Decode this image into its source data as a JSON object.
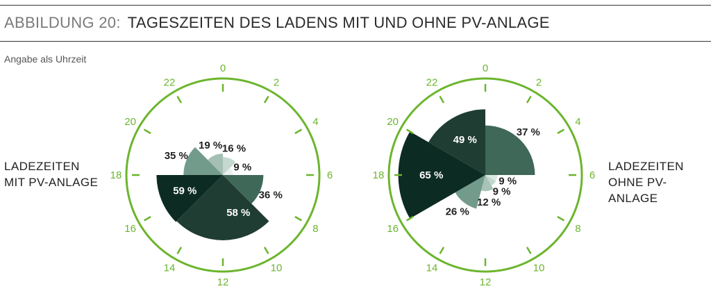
{
  "header": {
    "figure_label": "ABBILDUNG 20:",
    "title": "TAGESZEITEN DES LADENS MIT UND OHNE PV-ANLAGE",
    "subtitle": "Angabe als Uhrzeit"
  },
  "colors": {
    "clock_ring": "#6bb52d",
    "text": "#2b2b2b"
  },
  "chart_data": [
    {
      "type": "polar-area",
      "label_line1": "LADEZEITEN",
      "label_line2": "MIT PV-ANLAGE",
      "hour_labels": [
        "0",
        "2",
        "4",
        "6",
        "8",
        "10",
        "12",
        "14",
        "16",
        "18",
        "20",
        "22"
      ],
      "slices": [
        {
          "start_hour": 0,
          "end_hour": 3,
          "value": 16,
          "label": "16 %",
          "color": "#c5d9d0",
          "text_color": "#222"
        },
        {
          "start_hour": 3,
          "end_hour": 6,
          "value": 9,
          "label": "9 %",
          "color": "#eaf1ee",
          "text_color": "#222"
        },
        {
          "start_hour": 6,
          "end_hour": 9,
          "value": 36,
          "label": "36 %",
          "color": "#3f6858",
          "text_color": "#222"
        },
        {
          "start_hour": 9,
          "end_hour": 12,
          "value": 58,
          "label": "58 %",
          "color": "#1f3d32",
          "text_color": "#ffffff"
        },
        {
          "start_hour": 12,
          "end_hour": 15,
          "value": 58,
          "label": "",
          "color": "#1f3d32",
          "text_color": "#ffffff"
        },
        {
          "start_hour": 15,
          "end_hour": 18,
          "value": 59,
          "label": "59 %",
          "color": "#0c2b23",
          "text_color": "#ffffff"
        },
        {
          "start_hour": 18,
          "end_hour": 21,
          "value": 35,
          "label": "35 %",
          "color": "#739b8b",
          "text_color": "#222"
        },
        {
          "start_hour": 21,
          "end_hour": 24,
          "value": 19,
          "label": "19 %",
          "color": "#a4bfb3",
          "text_color": "#222"
        }
      ]
    },
    {
      "type": "polar-area",
      "label_line1": "LADEZEITEN",
      "label_line2": "OHNE PV-ANLAGE",
      "hour_labels": [
        "0",
        "2",
        "4",
        "6",
        "8",
        "10",
        "12",
        "14",
        "16",
        "18",
        "20",
        "22"
      ],
      "slices": [
        {
          "start_hour": 0,
          "end_hour": 6,
          "value": 37,
          "label": "37 %",
          "color": "#3f6858",
          "text_color": "#222"
        },
        {
          "start_hour": 6,
          "end_hour": 8,
          "value": 9,
          "label": "9 %",
          "color": "#dde9e3",
          "text_color": "#222"
        },
        {
          "start_hour": 8,
          "end_hour": 10,
          "value": 9,
          "label": "9 %",
          "color": "#c2d7cd",
          "text_color": "#222"
        },
        {
          "start_hour": 10,
          "end_hour": 13,
          "value": 12,
          "label": "12 %",
          "color": "#a9c3b7",
          "text_color": "#222"
        },
        {
          "start_hour": 13,
          "end_hour": 16,
          "value": 26,
          "label": "26 %",
          "color": "#739b8b",
          "text_color": "#222"
        },
        {
          "start_hour": 16,
          "end_hour": 20,
          "value": 65,
          "label": "65 %",
          "color": "#0c2b23",
          "text_color": "#ffffff"
        },
        {
          "start_hour": 20,
          "end_hour": 24,
          "value": 49,
          "label": "49 %",
          "color": "#1f3d32",
          "text_color": "#ffffff"
        }
      ]
    }
  ]
}
